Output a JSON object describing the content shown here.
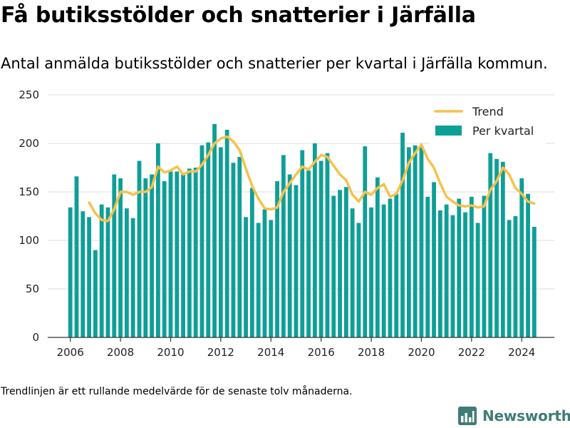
{
  "header": {
    "title": "Få butiksstölder och snatterier i Järfälla",
    "subtitle": "Antal anmälda butiksstölder och snatterier per kvartal i Järfälla kommun."
  },
  "footer": {
    "note": "Trendlinjen är ett rullande medelvärde för de senaste tolv månaderna.",
    "brand": "Newsworthy"
  },
  "colors": {
    "bar": "#0e9f97",
    "trend": "#f5c24c",
    "grid": "#dddddd",
    "axis": "#333333",
    "brand": "#3f7d76"
  },
  "chart_data": {
    "type": "bar",
    "title": "",
    "xlabel": "",
    "ylabel": "",
    "ylim": [
      0,
      250
    ],
    "xlim": [
      2005.1,
      2025.3
    ],
    "x_ticks": [
      2006,
      2008,
      2010,
      2012,
      2014,
      2016,
      2018,
      2020,
      2022,
      2024
    ],
    "y_ticks": [
      0,
      50,
      100,
      150,
      200,
      250
    ],
    "grid": true,
    "legend": {
      "position": "top-right",
      "items": [
        "Trend",
        "Per kvartal"
      ]
    },
    "x": [
      2006.0,
      2006.25,
      2006.5,
      2006.75,
      2007.0,
      2007.25,
      2007.5,
      2007.75,
      2008.0,
      2008.25,
      2008.5,
      2008.75,
      2009.0,
      2009.25,
      2009.5,
      2009.75,
      2010.0,
      2010.25,
      2010.5,
      2010.75,
      2011.0,
      2011.25,
      2011.5,
      2011.75,
      2012.0,
      2012.25,
      2012.5,
      2012.75,
      2013.0,
      2013.25,
      2013.5,
      2013.75,
      2014.0,
      2014.25,
      2014.5,
      2014.75,
      2015.0,
      2015.25,
      2015.5,
      2015.75,
      2016.0,
      2016.25,
      2016.5,
      2016.75,
      2017.0,
      2017.25,
      2017.5,
      2017.75,
      2018.0,
      2018.25,
      2018.5,
      2018.75,
      2019.0,
      2019.25,
      2019.5,
      2019.75,
      2020.0,
      2020.25,
      2020.5,
      2020.75,
      2021.0,
      2021.25,
      2021.5,
      2021.75,
      2022.0,
      2022.25,
      2022.5,
      2022.75,
      2023.0,
      2023.25,
      2023.5,
      2023.75,
      2024.0,
      2024.25,
      2024.5
    ],
    "series": [
      {
        "name": "Per kvartal",
        "type": "bar",
        "values": [
          134,
          166,
          130,
          124,
          90,
          137,
          134,
          168,
          164,
          133,
          123,
          182,
          164,
          168,
          200,
          161,
          171,
          171,
          168,
          174,
          175,
          198,
          201,
          220,
          196,
          214,
          180,
          186,
          124,
          154,
          118,
          132,
          121,
          161,
          188,
          168,
          157,
          193,
          172,
          200,
          182,
          190,
          146,
          152,
          155,
          133,
          118,
          197,
          134,
          165,
          137,
          143,
          148,
          211,
          196,
          198,
          196,
          145,
          160,
          131,
          137,
          126,
          143,
          129,
          145,
          118,
          146,
          190,
          184,
          181,
          121,
          125,
          164,
          148,
          114
        ]
      },
      {
        "name": "Trend",
        "type": "line",
        "x": [
          2006.75,
          2007.0,
          2007.25,
          2007.5,
          2007.75,
          2008.0,
          2008.25,
          2008.5,
          2008.75,
          2009.0,
          2009.25,
          2009.5,
          2009.75,
          2010.0,
          2010.25,
          2010.5,
          2010.75,
          2011.0,
          2011.25,
          2011.5,
          2011.75,
          2012.0,
          2012.25,
          2012.5,
          2012.75,
          2013.0,
          2013.25,
          2013.5,
          2013.75,
          2014.0,
          2014.25,
          2014.5,
          2014.75,
          2015.0,
          2015.25,
          2015.5,
          2015.75,
          2016.0,
          2016.25,
          2016.5,
          2016.75,
          2017.0,
          2017.25,
          2017.5,
          2017.75,
          2018.0,
          2018.25,
          2018.5,
          2018.75,
          2019.0,
          2019.25,
          2019.5,
          2019.75,
          2020.0,
          2020.25,
          2020.5,
          2020.75,
          2021.0,
          2021.25,
          2021.5,
          2021.75,
          2022.0,
          2022.25,
          2022.5,
          2022.75,
          2023.0,
          2023.25,
          2023.5,
          2023.75,
          2024.0,
          2024.25,
          2024.5
        ],
        "values": [
          139,
          128,
          121,
          120,
          132,
          150,
          150,
          147,
          150,
          150,
          155,
          176,
          170,
          172,
          176,
          168,
          171,
          171,
          178,
          188,
          200,
          205,
          207,
          202,
          193,
          174,
          156,
          143,
          133,
          132,
          134,
          150,
          159,
          168,
          176,
          173,
          181,
          188,
          186,
          177,
          168,
          162,
          147,
          140,
          150,
          147,
          154,
          158,
          145,
          148,
          162,
          180,
          190,
          199,
          184,
          175,
          159,
          145,
          140,
          136,
          135,
          136,
          134,
          135,
          152,
          161,
          175,
          168,
          154,
          148,
          140,
          138
        ]
      }
    ]
  }
}
